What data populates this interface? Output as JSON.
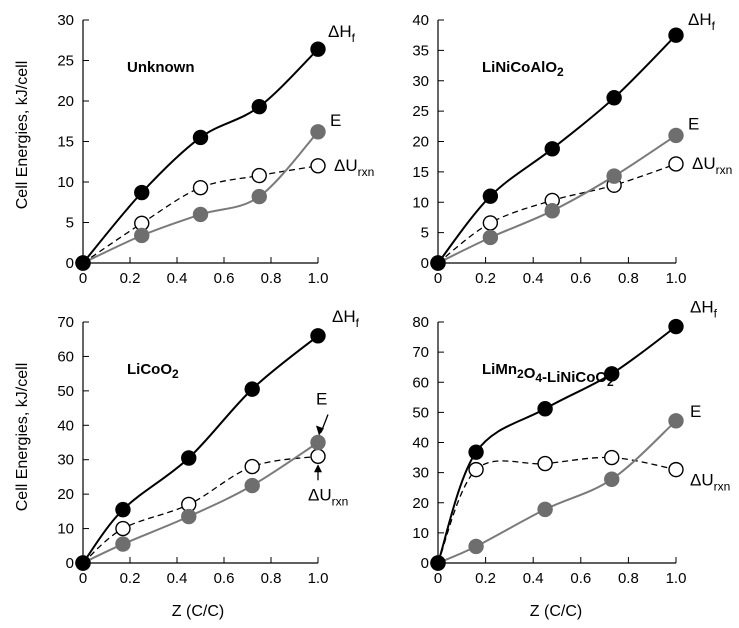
{
  "ylabel": "Cell Energies, kJ/cell",
  "xlabel": "Z (C/C)",
  "series_labels": {
    "dH": {
      "main": "ΔH",
      "sub": "f"
    },
    "E": {
      "main": "E",
      "sub": ""
    },
    "dU": {
      "main": "ΔU",
      "sub": "rxn"
    }
  },
  "chart_data": [
    {
      "type": "line",
      "title": {
        "parts": [
          {
            "t": "Unknown"
          }
        ]
      },
      "xlim": [
        0,
        1.0
      ],
      "ylim": [
        0,
        30
      ],
      "xticks": [
        "0",
        "0.2",
        "0.4",
        "0.6",
        "0.8",
        "1.0"
      ],
      "yticks": [
        "0",
        "5",
        "10",
        "15",
        "20",
        "25",
        "30"
      ],
      "series": [
        {
          "key": "dH",
          "x": [
            0,
            0.25,
            0.5,
            0.75,
            1.0
          ],
          "y": [
            0,
            8.7,
            15.5,
            19.3,
            26.4
          ]
        },
        {
          "key": "dU",
          "x": [
            0,
            0.25,
            0.5,
            0.75,
            1.0
          ],
          "y": [
            0,
            4.9,
            9.3,
            10.8,
            12.0
          ]
        },
        {
          "key": "E",
          "x": [
            0,
            0.25,
            0.5,
            0.75,
            1.0
          ],
          "y": [
            0,
            3.4,
            6.0,
            8.2,
            16.2
          ]
        }
      ]
    },
    {
      "type": "line",
      "title": {
        "parts": [
          {
            "t": "LiNiCoAlO"
          },
          {
            "t": "2",
            "sub": true
          }
        ]
      },
      "xlim": [
        0,
        1.0
      ],
      "ylim": [
        0,
        40
      ],
      "xticks": [
        "0",
        "0.2",
        "0.4",
        "0.6",
        "0.8",
        "1.0"
      ],
      "yticks": [
        "0",
        "5",
        "10",
        "15",
        "20",
        "25",
        "30",
        "35",
        "40"
      ],
      "series": [
        {
          "key": "dH",
          "x": [
            0,
            0.22,
            0.48,
            0.74,
            1.0
          ],
          "y": [
            0,
            11.0,
            18.8,
            27.2,
            37.5
          ]
        },
        {
          "key": "dU",
          "x": [
            0,
            0.22,
            0.48,
            0.74,
            1.0
          ],
          "y": [
            0,
            6.6,
            10.3,
            12.8,
            16.3
          ]
        },
        {
          "key": "E",
          "x": [
            0,
            0.22,
            0.48,
            0.74,
            1.0
          ],
          "y": [
            0,
            4.2,
            8.6,
            14.3,
            21.0
          ]
        }
      ]
    },
    {
      "type": "line",
      "title": {
        "parts": [
          {
            "t": "LiCoO"
          },
          {
            "t": "2",
            "sub": true
          }
        ]
      },
      "xlim": [
        0,
        1.0
      ],
      "ylim": [
        0,
        70
      ],
      "xticks": [
        "0",
        "0.2",
        "0.4",
        "0.6",
        "0.8",
        "1.0"
      ],
      "yticks": [
        "0",
        "10",
        "20",
        "30",
        "40",
        "50",
        "60",
        "70"
      ],
      "series": [
        {
          "key": "dH",
          "x": [
            0,
            0.17,
            0.45,
            0.72,
            1.0
          ],
          "y": [
            0,
            15.5,
            30.5,
            50.5,
            66.0
          ]
        },
        {
          "key": "dU",
          "x": [
            0,
            0.17,
            0.45,
            0.72,
            1.0
          ],
          "y": [
            0,
            10.0,
            17.0,
            28.0,
            31.0
          ]
        },
        {
          "key": "E",
          "x": [
            0,
            0.17,
            0.45,
            0.72,
            1.0
          ],
          "y": [
            0,
            5.5,
            13.5,
            22.5,
            35.0
          ]
        }
      ]
    },
    {
      "type": "line",
      "title": {
        "parts": [
          {
            "t": "LiMn"
          },
          {
            "t": "2",
            "sub": true
          },
          {
            "t": "O"
          },
          {
            "t": "4",
            "sub": true
          },
          {
            "t": "-LiNiCoO"
          },
          {
            "t": "2",
            "sub": true
          }
        ]
      },
      "xlim": [
        0,
        1.0
      ],
      "ylim": [
        0,
        80
      ],
      "xticks": [
        "0",
        "0.2",
        "0.4",
        "0.6",
        "0.8",
        "1.0"
      ],
      "yticks": [
        "0",
        "10",
        "20",
        "30",
        "40",
        "50",
        "60",
        "70",
        "80"
      ],
      "series": [
        {
          "key": "dH",
          "x": [
            0,
            0.16,
            0.45,
            0.73,
            1.0
          ],
          "y": [
            0,
            36.8,
            51.2,
            62.8,
            78.5
          ]
        },
        {
          "key": "dU",
          "x": [
            0,
            0.16,
            0.45,
            0.73,
            1.0
          ],
          "y": [
            0,
            31.0,
            33.0,
            35.0,
            31.0
          ]
        },
        {
          "key": "E",
          "x": [
            0,
            0.16,
            0.45,
            0.73,
            1.0
          ],
          "y": [
            0,
            5.5,
            17.8,
            27.8,
            47.2
          ]
        }
      ]
    }
  ]
}
